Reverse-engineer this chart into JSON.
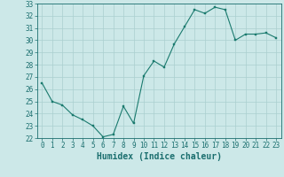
{
  "xlabel": "Humidex (Indice chaleur)",
  "x": [
    0,
    1,
    2,
    3,
    4,
    5,
    6,
    7,
    8,
    9,
    10,
    11,
    12,
    13,
    14,
    15,
    16,
    17,
    18,
    19,
    20,
    21,
    22,
    23
  ],
  "y": [
    26.5,
    25.0,
    24.7,
    23.9,
    23.5,
    23.0,
    22.1,
    22.3,
    24.6,
    23.2,
    27.1,
    28.3,
    27.8,
    29.7,
    31.1,
    32.5,
    32.2,
    32.7,
    32.5,
    30.0,
    30.5,
    30.5,
    30.6,
    30.2
  ],
  "line_color": "#1a7a6e",
  "marker_color": "#1a7a6e",
  "bg_color": "#cce8e8",
  "grid_color": "#aacfcf",
  "ylim": [
    22,
    33
  ],
  "yticks": [
    22,
    23,
    24,
    25,
    26,
    27,
    28,
    29,
    30,
    31,
    32,
    33
  ],
  "xticks": [
    0,
    1,
    2,
    3,
    4,
    5,
    6,
    7,
    8,
    9,
    10,
    11,
    12,
    13,
    14,
    15,
    16,
    17,
    18,
    19,
    20,
    21,
    22,
    23
  ],
  "tick_color": "#1a6e6e",
  "label_fontsize": 7,
  "tick_fontsize": 5.5
}
